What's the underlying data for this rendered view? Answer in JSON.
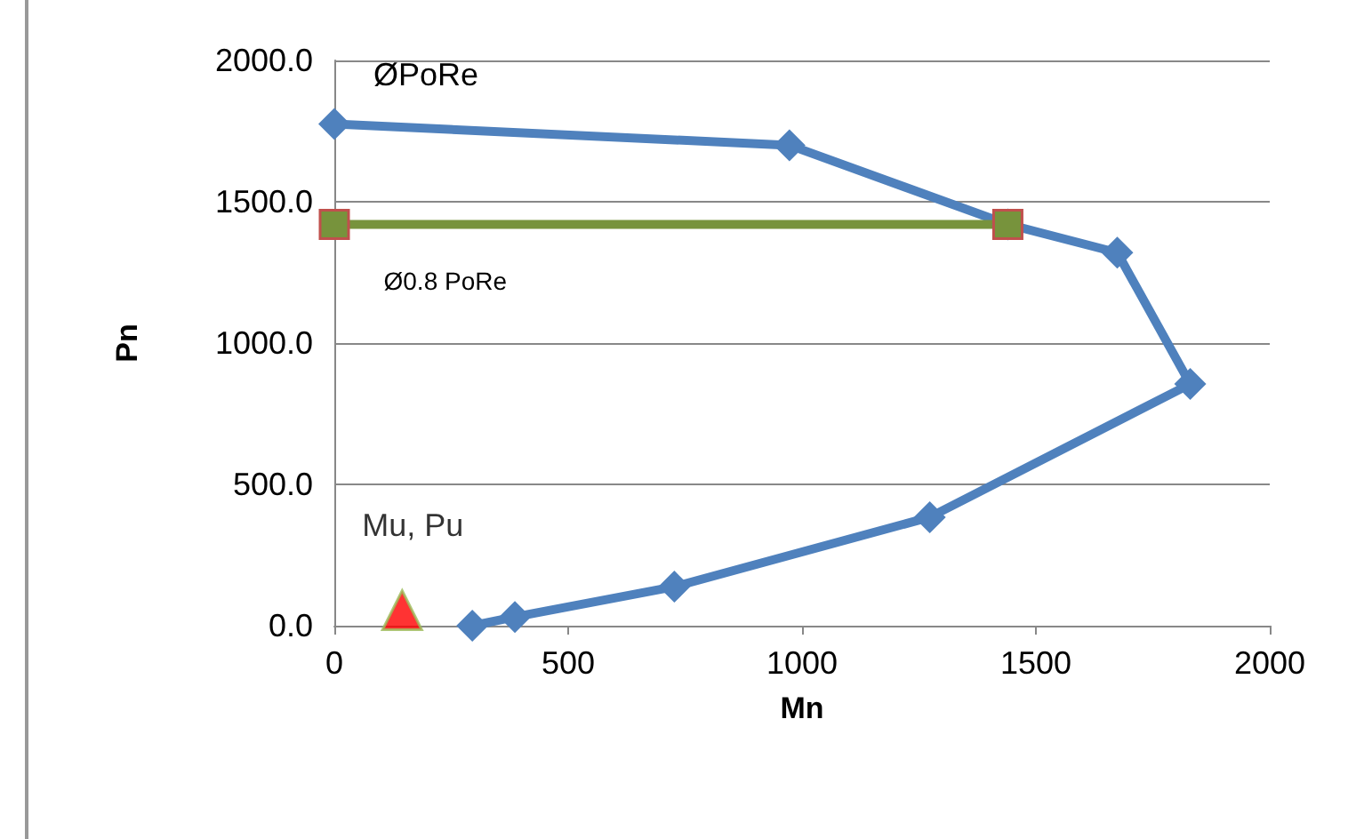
{
  "chart_data": {
    "type": "line",
    "xlabel": "Mn",
    "ylabel": "Pn",
    "xlim": [
      0,
      2000
    ],
    "xticks": [
      0,
      500,
      1000,
      1500,
      2000
    ],
    "ylim": [
      0,
      2000
    ],
    "yticks": [
      {
        "value": 0,
        "label": "0.0"
      },
      {
        "value": 500,
        "label": "500.0"
      },
      {
        "value": 1000,
        "label": "1000.0"
      },
      {
        "value": 1500,
        "label": "1500.0"
      },
      {
        "value": 2000,
        "label": "2000.0"
      }
    ],
    "grid": "y",
    "series": [
      {
        "name": "ØPoRe",
        "marker": "diamond",
        "color": "#4f81bd",
        "x": [
          0,
          973,
          1440,
          1674,
          1830,
          1273,
          727,
          386,
          295
        ],
        "values": [
          1775,
          1700,
          1420,
          1320,
          855,
          384,
          138,
          31,
          0
        ]
      },
      {
        "name": "Ø0.8 PoRe",
        "marker": "square",
        "color": "#77933c",
        "x": [
          0,
          1440
        ],
        "values": [
          1420,
          1420
        ]
      },
      {
        "name": "Mu, Pu",
        "type": "scatter",
        "marker": "triangle",
        "color": "#ff0000",
        "x": [
          145
        ],
        "values": [
          55
        ]
      }
    ]
  }
}
